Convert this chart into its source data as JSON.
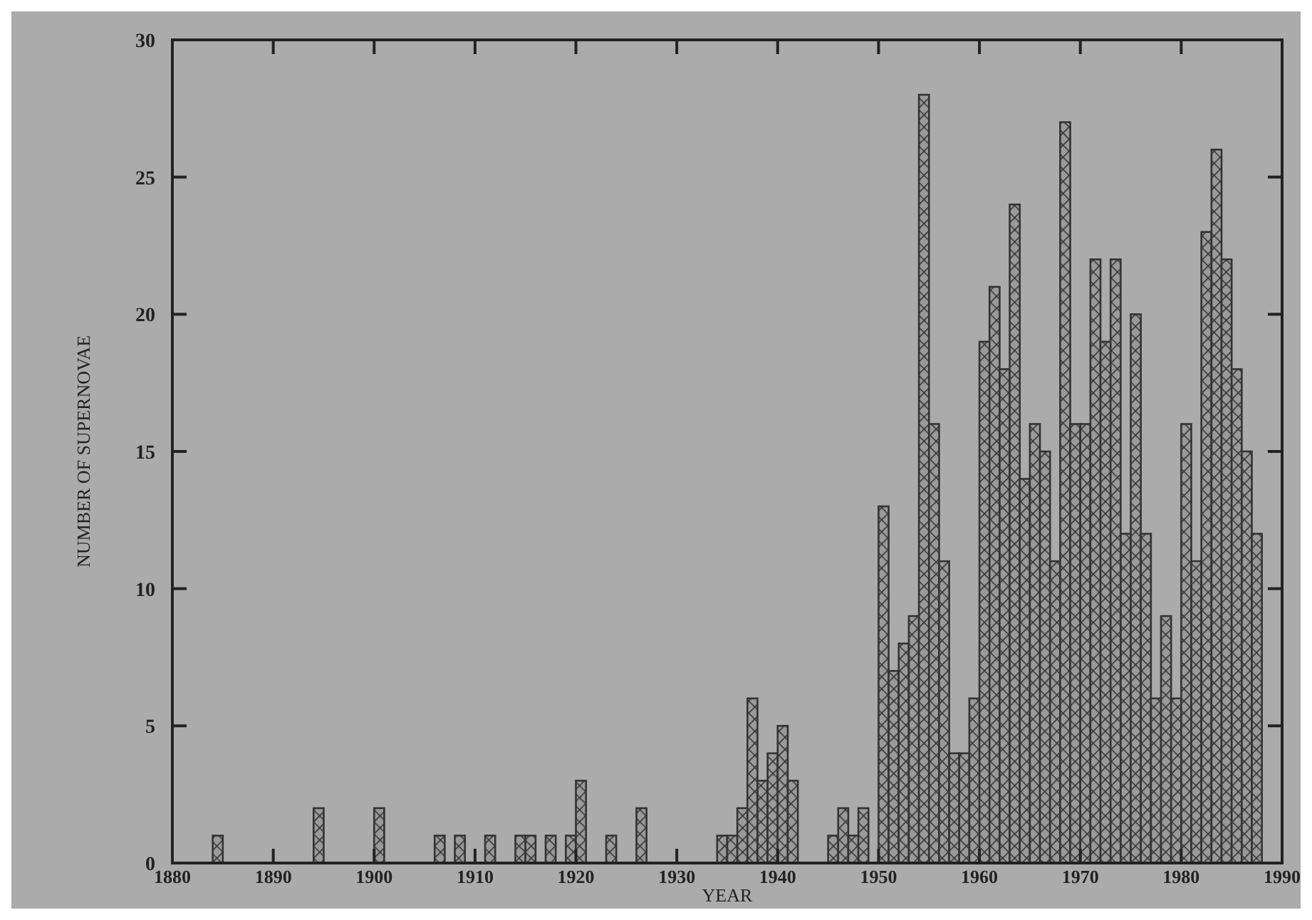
{
  "chart_data": {
    "type": "histogram",
    "xlabel": "YEAR",
    "ylabel": "NUMBER OF SUPERNOVAE",
    "bins": [
      1880,
      1881,
      1882,
      1883,
      1884,
      1885,
      1886,
      1887,
      1888,
      1889,
      1890,
      1891,
      1892,
      1893,
      1894,
      1895,
      1896,
      1897,
      1898,
      1899,
      1900,
      1901,
      1902,
      1903,
      1904,
      1905,
      1906,
      1907,
      1908,
      1909,
      1910,
      1911,
      1912,
      1913,
      1914,
      1915,
      1916,
      1917,
      1918,
      1919,
      1920,
      1921,
      1922,
      1923,
      1924,
      1925,
      1926,
      1927,
      1928,
      1929,
      1930,
      1931,
      1932,
      1933,
      1934,
      1935,
      1936,
      1937,
      1938,
      1939,
      1940,
      1941,
      1942,
      1943,
      1944,
      1945,
      1946,
      1947,
      1948,
      1949,
      1950,
      1951,
      1952,
      1953,
      1954,
      1955,
      1956,
      1957,
      1958,
      1959,
      1960,
      1961,
      1962,
      1963,
      1964,
      1965,
      1966,
      1967,
      1968,
      1969,
      1970,
      1971,
      1972,
      1973,
      1974,
      1975,
      1976,
      1977,
      1978,
      1979,
      1980,
      1981,
      1982,
      1983,
      1984,
      1985,
      1986,
      1987,
      1988,
      1989,
      1990
    ],
    "values": [
      0,
      0,
      0,
      0,
      1,
      0,
      0,
      0,
      0,
      0,
      0,
      0,
      0,
      0,
      2,
      0,
      0,
      0,
      0,
      0,
      2,
      0,
      0,
      0,
      0,
      0,
      1,
      0,
      1,
      0,
      0,
      1,
      0,
      0,
      1,
      1,
      0,
      1,
      0,
      1,
      3,
      0,
      0,
      1,
      0,
      0,
      2,
      0,
      0,
      0,
      0,
      0,
      0,
      0,
      1,
      1,
      2,
      6,
      3,
      4,
      5,
      3,
      0,
      0,
      0,
      1,
      2,
      1,
      2,
      0,
      13,
      7,
      8,
      9,
      28,
      16,
      11,
      4,
      4,
      6,
      19,
      21,
      18,
      24,
      14,
      16,
      15,
      11,
      27,
      16,
      16,
      22,
      19,
      22,
      12,
      20,
      12,
      6,
      9,
      6,
      16,
      11,
      23,
      26,
      22,
      18,
      15,
      12,
      0,
      0
    ],
    "color": "#333333",
    "xlim": [
      1880,
      1990
    ],
    "xticks": [
      1880,
      1890,
      1900,
      1910,
      1920,
      1930,
      1940,
      1950,
      1960,
      1970,
      1980,
      1990
    ],
    "ylim": [
      0,
      30
    ],
    "yticks": [
      0,
      5,
      10,
      15,
      20,
      25,
      30
    ],
    "grid": false
  }
}
